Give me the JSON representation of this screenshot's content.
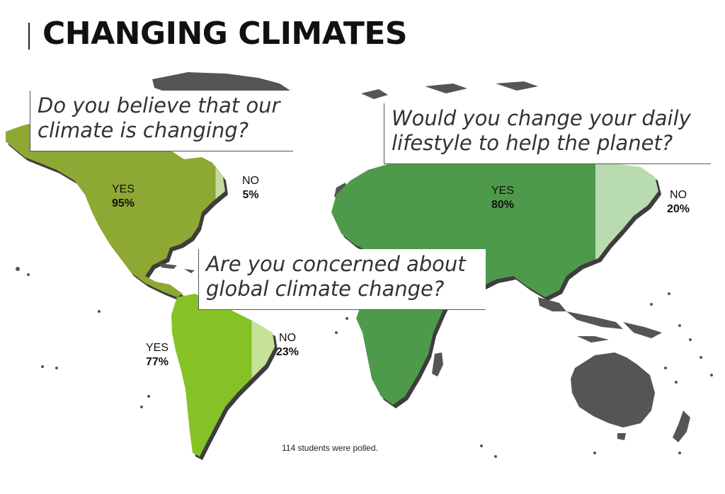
{
  "title": "CHANGING CLIMATES",
  "note": "114 students were polled.",
  "colors": {
    "land": "#555555",
    "land_shadow": "#444444",
    "q1_yes": "#8da833",
    "q1_no": "#c8d9a0",
    "q2_yes": "#4e9a4b",
    "q2_no": "#b8dbb0",
    "q3_yes": "#86c226",
    "q3_no": "#c5e296"
  },
  "chart_data": [
    {
      "type": "pie",
      "title": "Do you believe that our climate is changing?",
      "region": "North America",
      "categories": [
        "YES",
        "NO"
      ],
      "values": [
        95,
        5
      ],
      "labels": [
        "95%",
        "5%"
      ]
    },
    {
      "type": "pie",
      "title": "Would you change your daily lifestyle to help the planet?",
      "region": "Eurasia & Africa",
      "categories": [
        "YES",
        "NO"
      ],
      "values": [
        80,
        20
      ],
      "labels": [
        "80%",
        "20%"
      ]
    },
    {
      "type": "pie",
      "title": "Are you concerned about global climate change?",
      "region": "South America",
      "categories": [
        "YES",
        "NO"
      ],
      "values": [
        77,
        23
      ],
      "labels": [
        "77%",
        "23%"
      ]
    }
  ]
}
